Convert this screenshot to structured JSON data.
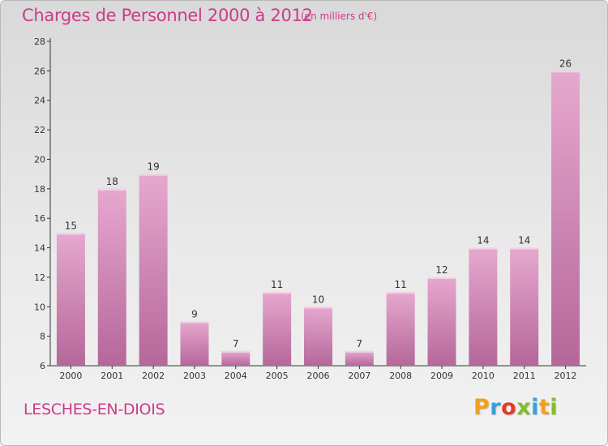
{
  "header": {
    "title": "Charges de Personnel 2000 à 2012",
    "unit_note": "(en milliers d'€)"
  },
  "footer": {
    "commune": "LESCHES-EN-DIOIS",
    "logo_letters": [
      "P",
      "r",
      "o",
      "x",
      "i",
      "t",
      "i"
    ]
  },
  "colors": {
    "accent": "#cc3b8a",
    "bar_top": "#e6a8cf",
    "bar_bottom": "#b5679a",
    "logo": [
      "#f0a020",
      "#3a9fd8",
      "#e63a2a",
      "#7fbf2a",
      "#3a9fd8",
      "#f0a020",
      "#7fbf2a"
    ]
  },
  "chart_data": {
    "type": "bar",
    "title": "Charges de Personnel 2000 à 2012",
    "subtitle": "(en milliers d'€)",
    "categories": [
      "2000",
      "2001",
      "2002",
      "2003",
      "2004",
      "2005",
      "2006",
      "2007",
      "2008",
      "2009",
      "2010",
      "2011",
      "2012"
    ],
    "values": [
      15,
      18,
      19,
      9,
      7,
      11,
      10,
      7,
      11,
      12,
      14,
      14,
      26
    ],
    "ylim": [
      6,
      28
    ],
    "yticks": [
      6,
      8,
      10,
      12,
      14,
      16,
      18,
      20,
      22,
      24,
      26,
      28
    ],
    "grid": false,
    "legend": "none"
  }
}
